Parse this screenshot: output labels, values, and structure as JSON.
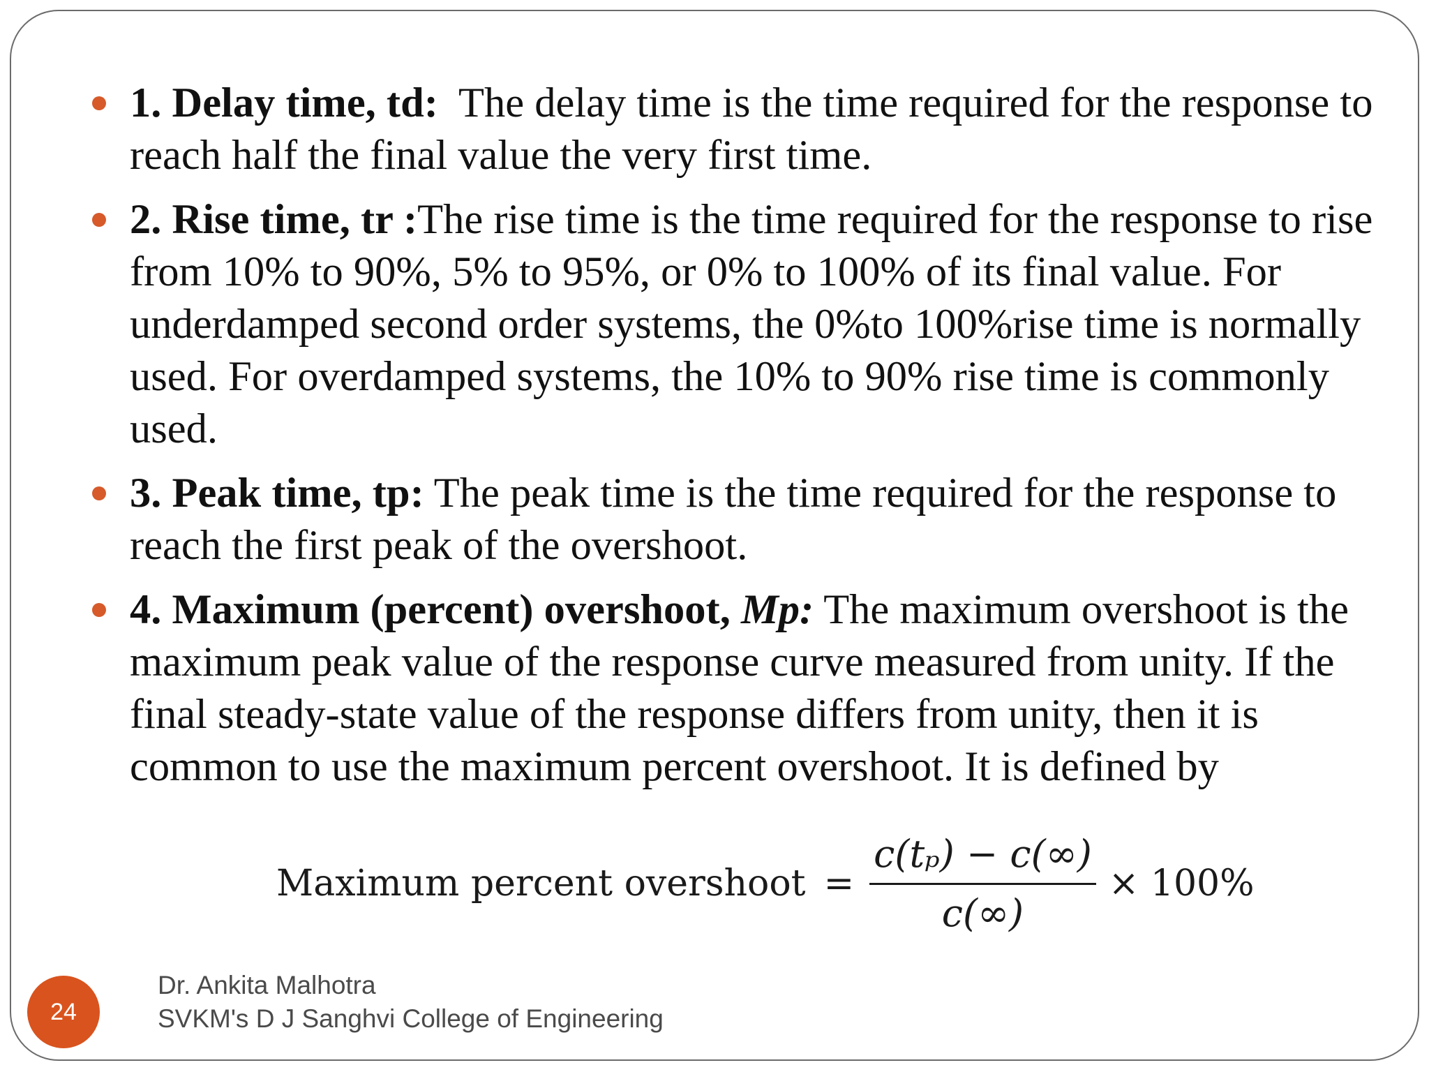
{
  "bullets": [
    {
      "label": "1. Delay time, td:",
      "text": "  The delay time is the time required for the response to reach half the final value the very first time."
    },
    {
      "label": "2. Rise time, tr :",
      "text": "The rise time is the time required for the response to rise from 10% to 90%, 5% to 95%, or 0% to 100% of its final value. For underdamped second order systems, the 0%to 100%rise time is normally used. For overdamped systems, the 10% to 90% rise time is commonly used."
    },
    {
      "label": "3. Peak time, tp:",
      "text": " The peak time is the time required for the response to reach the first peak of the overshoot."
    },
    {
      "label": "4. Maximum (percent) overshoot, ",
      "label_italic": "Mp:",
      "text": " The maximum overshoot is the maximum peak value of the response curve measured from unity. If the final steady-state value of the response differs from unity, then it is common to use the maximum percent overshoot. It is defined by"
    }
  ],
  "formula": {
    "label": "Maximum percent overshoot",
    "equals": "=",
    "numerator": "c(tₚ) − c(∞)",
    "denominator": "c(∞)",
    "multiplier": "× 100%"
  },
  "footer": {
    "slide_number": "24",
    "author": "Dr. Ankita Malhotra",
    "institution": "SVKM's D J Sanghvi College of Engineering"
  },
  "colors": {
    "accent": "#d9531e",
    "text": "#111111",
    "footer_text": "#4a4a4a"
  }
}
